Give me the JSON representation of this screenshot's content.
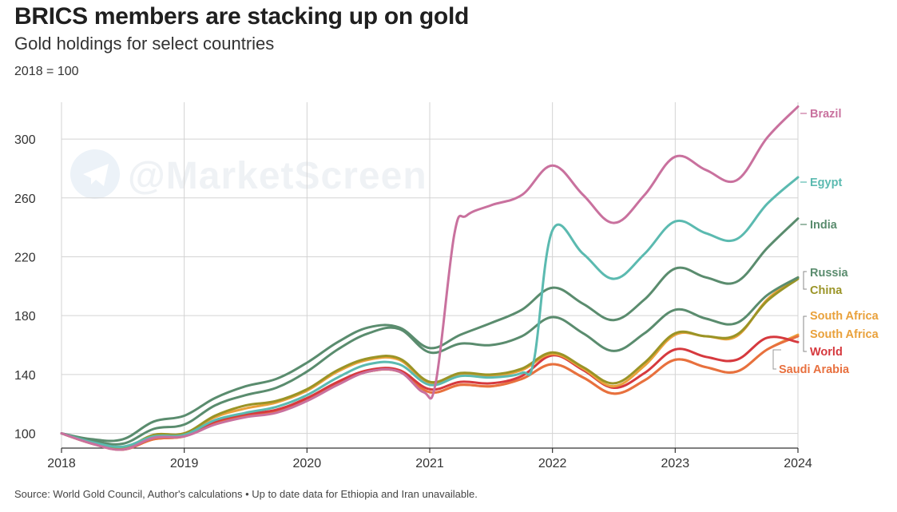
{
  "header": {
    "title": "BRICS members are stacking up on gold",
    "subtitle": "Gold holdings for select countries",
    "note": "2018 = 100"
  },
  "watermark": {
    "text": "@MarketScreen",
    "icon": "telegram-icon",
    "color": "#eef1f5"
  },
  "footer": {
    "source": "Source: World Gold Council, Author's calculations • Up to date data for Ethiopia and Iran unavailable."
  },
  "chart_data": {
    "type": "line",
    "title": "BRICS members are stacking up on gold",
    "subtitle": "Gold holdings for select countries",
    "xlabel": "",
    "ylabel": "2018 = 100",
    "xlim": [
      2018,
      2024
    ],
    "ylim": [
      90,
      325
    ],
    "x_ticks": [
      2018,
      2019,
      2020,
      2021,
      2022,
      2023,
      2024
    ],
    "x_tick_labels": [
      "2018",
      "2019",
      "2020",
      "2021",
      "2022",
      "2023",
      "2024"
    ],
    "y_ticks": [
      100,
      140,
      180,
      220,
      260,
      300
    ],
    "y_tick_labels": [
      "100",
      "140",
      "180",
      "220",
      "260",
      "300"
    ],
    "grid": "horizontal",
    "legend": "direct labels at right",
    "series": [
      {
        "name": "Brazil",
        "label": "Brazil",
        "color": "#c9719e",
        "x": [
          2018,
          2018.25,
          2018.5,
          2018.75,
          2019,
          2019.25,
          2019.5,
          2019.75,
          2020,
          2020.25,
          2020.5,
          2020.75,
          2020.95,
          2021.05,
          2021.2,
          2021.3,
          2021.5,
          2021.75,
          2022,
          2022.25,
          2022.5,
          2022.75,
          2023,
          2023.25,
          2023.5,
          2023.75,
          2024
        ],
        "y": [
          100,
          93,
          89,
          97,
          98,
          106,
          111,
          114,
          122,
          133,
          142,
          142,
          128,
          135,
          235,
          248,
          255,
          262,
          282,
          262,
          243,
          262,
          288,
          279,
          272,
          301,
          322
        ]
      },
      {
        "name": "Egypt",
        "label": "Egypt",
        "color": "#5bbab0",
        "x": [
          2018,
          2018.25,
          2018.5,
          2018.75,
          2019,
          2019.25,
          2019.5,
          2019.75,
          2020,
          2020.25,
          2020.5,
          2020.75,
          2021,
          2021.25,
          2021.5,
          2021.75,
          2021.85,
          2022,
          2022.25,
          2022.5,
          2022.75,
          2023,
          2023.25,
          2023.5,
          2023.75,
          2024
        ],
        "y": [
          100,
          94,
          91,
          98,
          99,
          109,
          114,
          118,
          126,
          138,
          147,
          147,
          133,
          139,
          138,
          141,
          150,
          238,
          222,
          205,
          222,
          244,
          236,
          232,
          256,
          274
        ]
      },
      {
        "name": "India",
        "label": "India",
        "color": "#5a8c6e",
        "x": [
          2018,
          2018.25,
          2018.5,
          2018.75,
          2019,
          2019.25,
          2019.5,
          2019.75,
          2020,
          2020.25,
          2020.5,
          2020.75,
          2021,
          2021.25,
          2021.5,
          2021.75,
          2022,
          2022.25,
          2022.5,
          2022.75,
          2023,
          2023.25,
          2023.5,
          2023.75,
          2024
        ],
        "y": [
          100,
          96,
          96,
          108,
          112,
          124,
          132,
          137,
          148,
          162,
          172,
          172,
          158,
          167,
          175,
          184,
          199,
          188,
          177,
          191,
          212,
          206,
          203,
          226,
          246
        ]
      },
      {
        "name": "Russia",
        "label": "Russia",
        "color": "#5a8c6e",
        "x": [
          2018,
          2018.25,
          2018.5,
          2018.75,
          2019,
          2019.25,
          2019.5,
          2019.75,
          2020,
          2020.25,
          2020.5,
          2020.75,
          2021,
          2021.25,
          2021.5,
          2021.75,
          2022,
          2022.25,
          2022.5,
          2022.75,
          2023,
          2023.25,
          2023.5,
          2023.75,
          2024
        ],
        "y": [
          100,
          95,
          93,
          103,
          106,
          119,
          126,
          131,
          142,
          157,
          168,
          171,
          155,
          161,
          160,
          166,
          179,
          168,
          156,
          168,
          184,
          178,
          175,
          194,
          206
        ]
      },
      {
        "name": "China",
        "label": "China",
        "color": "#9a9426",
        "x": [
          2018,
          2018.25,
          2018.5,
          2018.75,
          2019,
          2019.25,
          2019.5,
          2019.75,
          2020,
          2020.25,
          2020.5,
          2020.75,
          2021,
          2021.25,
          2021.5,
          2021.75,
          2022,
          2022.25,
          2022.5,
          2022.75,
          2023,
          2023.25,
          2023.5,
          2023.75,
          2024
        ],
        "y": [
          100,
          94,
          90,
          99,
          100,
          112,
          119,
          122,
          130,
          143,
          151,
          151,
          135,
          141,
          140,
          144,
          155,
          145,
          134,
          148,
          168,
          166,
          167,
          190,
          205
        ]
      },
      {
        "name": "South Africa",
        "label": "South Africa",
        "color": "#e9a13b",
        "x": [
          2018,
          2018.25,
          2018.5,
          2018.75,
          2019,
          2019.25,
          2019.5,
          2019.75,
          2020,
          2020.25,
          2020.5,
          2020.75,
          2021,
          2021.25,
          2021.5,
          2021.75,
          2022,
          2022.25,
          2022.5,
          2022.75,
          2023,
          2023.25,
          2023.5,
          2023.75,
          2024
        ],
        "y": [
          100,
          94,
          90,
          98,
          100,
          111,
          117,
          121,
          129,
          142,
          150,
          150,
          134,
          140,
          139,
          143,
          154,
          144,
          132,
          146,
          167,
          166,
          166,
          191,
          206
        ]
      },
      {
        "name": "South Africa",
        "label": "South Africa",
        "color": "#e9a13b",
        "x": [
          2018,
          2018.25,
          2018.5,
          2018.75,
          2019,
          2019.25,
          2019.5,
          2019.75,
          2020,
          2020.25,
          2020.5,
          2020.75,
          2021,
          2021.25,
          2021.5,
          2021.75,
          2022,
          2022.25,
          2022.5,
          2022.75,
          2023,
          2023.25,
          2023.5,
          2023.75,
          2024
        ],
        "y": [
          100,
          93,
          89,
          96,
          98,
          107,
          112,
          115,
          123,
          134,
          142,
          142,
          128,
          133,
          132,
          137,
          147,
          138,
          127,
          136,
          150,
          145,
          142,
          157,
          167
        ]
      },
      {
        "name": "World",
        "label": "World",
        "color": "#d6393e",
        "x": [
          2018,
          2018.25,
          2018.5,
          2018.75,
          2019,
          2019.25,
          2019.5,
          2019.75,
          2020,
          2020.25,
          2020.5,
          2020.75,
          2021,
          2021.25,
          2021.5,
          2021.75,
          2022,
          2022.25,
          2022.5,
          2022.75,
          2023,
          2023.25,
          2023.5,
          2023.75,
          2024
        ],
        "y": [
          100,
          94,
          89,
          97,
          99,
          108,
          113,
          116,
          124,
          135,
          143,
          143,
          130,
          135,
          134,
          139,
          153,
          143,
          131,
          141,
          157,
          152,
          150,
          165,
          162
        ]
      },
      {
        "name": "Saudi Arabia",
        "label": "Saudi Arabia",
        "color": "#e8703f",
        "x": [
          2018,
          2018.25,
          2018.5,
          2018.75,
          2019,
          2019.25,
          2019.5,
          2019.75,
          2020,
          2020.25,
          2020.5,
          2020.75,
          2021,
          2021.25,
          2021.5,
          2021.75,
          2022,
          2022.25,
          2022.5,
          2022.75,
          2023,
          2023.25,
          2023.5,
          2023.75,
          2024
        ],
        "y": [
          100,
          93,
          89,
          96,
          98,
          107,
          112,
          115,
          123,
          134,
          142,
          142,
          128,
          133,
          132,
          137,
          147,
          138,
          127,
          136,
          150,
          145,
          142,
          157,
          166
        ]
      }
    ]
  }
}
